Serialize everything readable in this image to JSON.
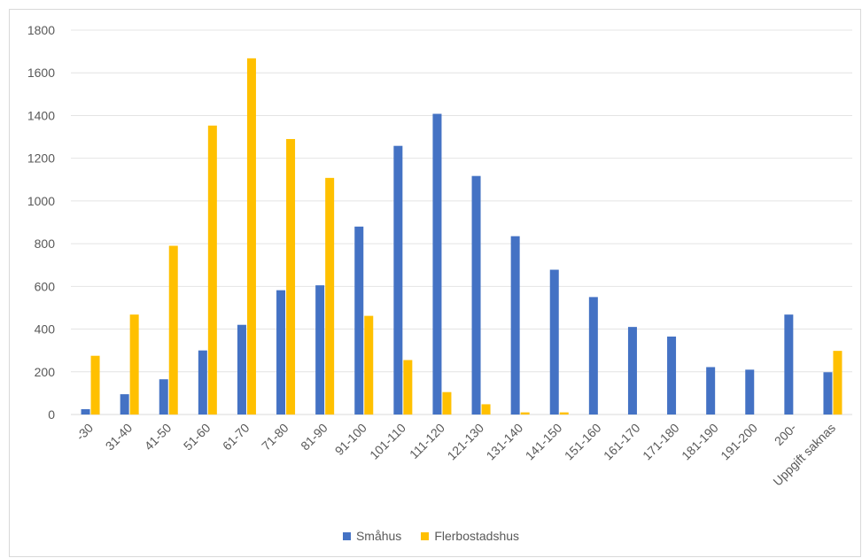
{
  "chart_data": {
    "type": "bar",
    "title": "",
    "xlabel": "",
    "ylabel": "",
    "ylim": [
      0,
      1800
    ],
    "yticks": [
      0,
      200,
      400,
      600,
      800,
      1000,
      1200,
      1400,
      1600,
      1800
    ],
    "grid": true,
    "legend_position": "bottom",
    "categories": [
      "-30",
      "31-40",
      "41-50",
      "51-60",
      "61-70",
      "71-80",
      "81-90",
      "91-100",
      "101-110",
      "111-120",
      "121-130",
      "131-140",
      "141-150",
      "151-160",
      "161-170",
      "171-180",
      "181-190",
      "191-200",
      "200-",
      "Uppgift saknas"
    ],
    "series": [
      {
        "name": "Småhus",
        "color": "#4472c4",
        "values": [
          25,
          95,
          165,
          300,
          420,
          582,
          605,
          880,
          1258,
          1408,
          1117,
          835,
          678,
          550,
          410,
          365,
          222,
          210,
          468,
          198
        ]
      },
      {
        "name": "Flerbostadshus",
        "color": "#ffc000",
        "values": [
          275,
          468,
          790,
          1353,
          1668,
          1290,
          1108,
          462,
          255,
          105,
          48,
          10,
          10,
          0,
          0,
          0,
          0,
          0,
          0,
          298
        ]
      }
    ]
  }
}
